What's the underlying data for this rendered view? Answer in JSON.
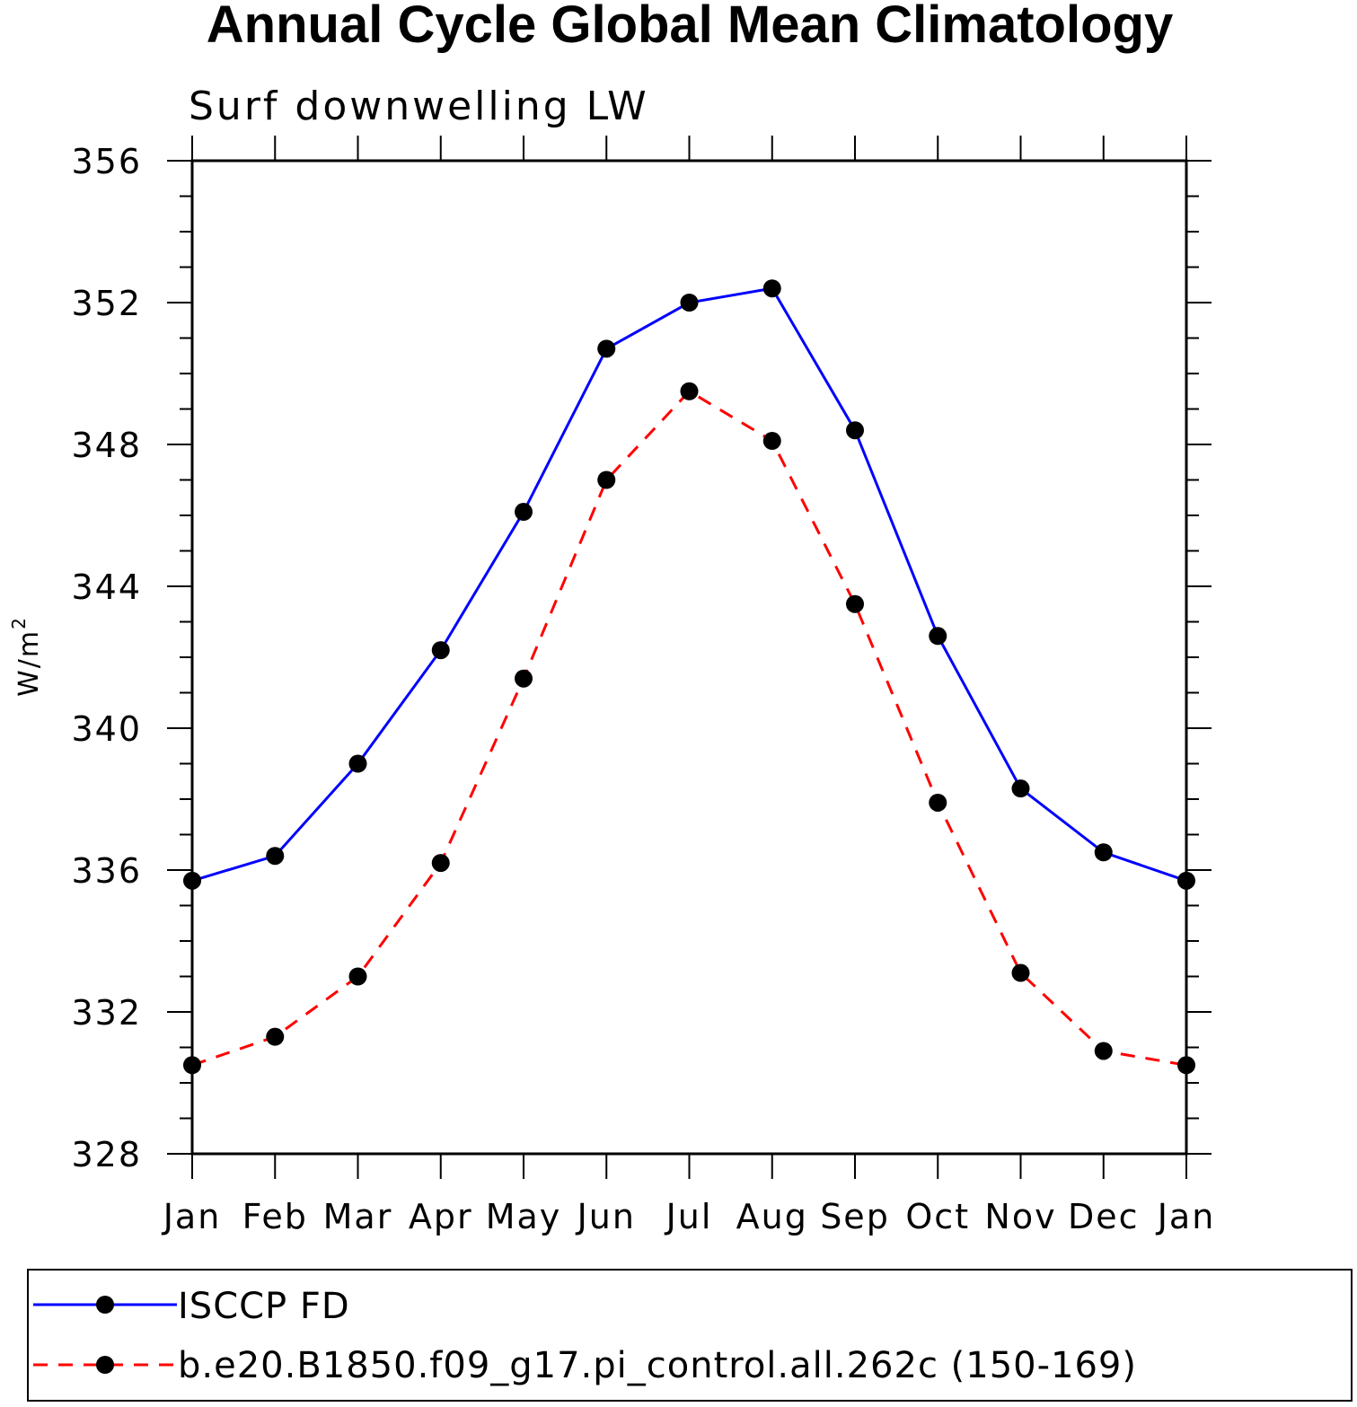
{
  "chart_data": {
    "type": "line",
    "title": "Annual Cycle Global Mean Climatology",
    "subtitle": "Surf downwelling LW",
    "ylabel": "W/m",
    "ylabel_superscript": "2",
    "ylim": [
      328,
      356
    ],
    "yticks": [
      "356",
      "352",
      "348",
      "344",
      "340",
      "336",
      "332",
      "328"
    ],
    "categories": [
      "Jan",
      "Feb",
      "Mar",
      "Apr",
      "May",
      "Jun",
      "Jul",
      "Aug",
      "Sep",
      "Oct",
      "Nov",
      "Dec",
      "Jan"
    ],
    "series": [
      {
        "name": "ISCCP FD",
        "color": "#0000ff",
        "dash": "solid",
        "marker_color": "#000000",
        "values": [
          335.7,
          336.4,
          339.0,
          342.2,
          346.1,
          350.7,
          352.0,
          352.4,
          348.4,
          342.6,
          338.3,
          336.5,
          335.7
        ]
      },
      {
        "name": "b.e20.B1850.f09_g17.pi_control.all.262c (150-169)",
        "color": "#ff0000",
        "dash": "dashed",
        "marker_color": "#000000",
        "values": [
          330.5,
          331.3,
          333.0,
          336.2,
          341.4,
          347.0,
          349.5,
          348.1,
          343.5,
          337.9,
          333.1,
          330.9,
          330.5
        ]
      }
    ]
  }
}
